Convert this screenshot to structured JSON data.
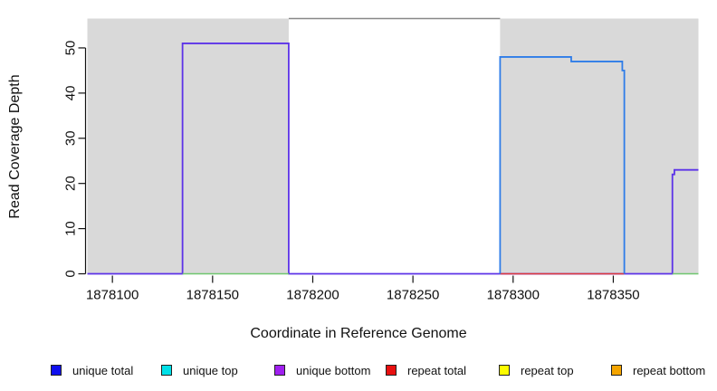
{
  "figure": {
    "background": "#ffffff",
    "shaded_color": "#d9d9d9",
    "frame_color": "#888888",
    "axis_color": "#111111"
  },
  "chart_data": {
    "type": "line",
    "title": "",
    "xlabel": "Coordinate in Reference Genome",
    "ylabel": "Read Coverage Depth",
    "xlim": [
      1878087.5,
      1878392.5
    ],
    "ylim": [
      0,
      56.5
    ],
    "x_ticks": [
      1878100,
      1878150,
      1878200,
      1878250,
      1878300,
      1878350
    ],
    "y_ticks": [
      0,
      10,
      20,
      30,
      40,
      50
    ],
    "grid": false,
    "shaded_regions": [
      {
        "name": "left-shaded-region",
        "x0": 1878087.5,
        "x1": 1878188,
        "color": "#d9d9d9"
      },
      {
        "name": "right-shaded-region",
        "x0": 1878293.5,
        "x1": 1878392.5,
        "color": "#d9d9d9"
      }
    ],
    "series": [
      {
        "name": "unique bottom",
        "color": "#5c33e8",
        "width": 1.8,
        "points": [
          [
            1878087.5,
            0
          ],
          [
            1878135,
            0
          ],
          [
            1878135,
            51
          ],
          [
            1878188,
            51
          ],
          [
            1878188,
            0
          ],
          [
            1878379.5,
            0
          ],
          [
            1878379.5,
            22
          ],
          [
            1878380.5,
            22
          ],
          [
            1878380.5,
            23
          ],
          [
            1878392.5,
            23
          ]
        ]
      },
      {
        "name": "baseline green segment left",
        "color": "#6fc76f",
        "width": 1.4,
        "points": [
          [
            1878135,
            0
          ],
          [
            1878188,
            0
          ]
        ]
      },
      {
        "name": "baseline green segment right",
        "color": "#6fc76f",
        "width": 1.4,
        "points": [
          [
            1878379.5,
            0
          ],
          [
            1878392.5,
            0
          ]
        ]
      },
      {
        "name": "repeat total baseline",
        "color": "#e03a3a",
        "width": 1.4,
        "points": [
          [
            1878293.5,
            0
          ],
          [
            1878355.5,
            0
          ]
        ]
      },
      {
        "name": "unique total",
        "color": "#2e7ce8",
        "width": 1.8,
        "points": [
          [
            1878293.5,
            0
          ],
          [
            1878293.5,
            48
          ],
          [
            1878329,
            48
          ],
          [
            1878329,
            47
          ],
          [
            1878354.5,
            47
          ],
          [
            1878354.5,
            45
          ],
          [
            1878355.5,
            45
          ],
          [
            1878355.5,
            0
          ]
        ]
      }
    ],
    "legend": [
      {
        "label": "unique total",
        "color": "#1010ee"
      },
      {
        "label": "unique top",
        "color": "#00e0e8"
      },
      {
        "label": "unique bottom",
        "color": "#a020f0"
      },
      {
        "label": "repeat total",
        "color": "#e81010"
      },
      {
        "label": "repeat top",
        "color": "#fdfd00"
      },
      {
        "label": "repeat bottom",
        "color": "#f5a500"
      }
    ],
    "legend_position": "bottom"
  }
}
